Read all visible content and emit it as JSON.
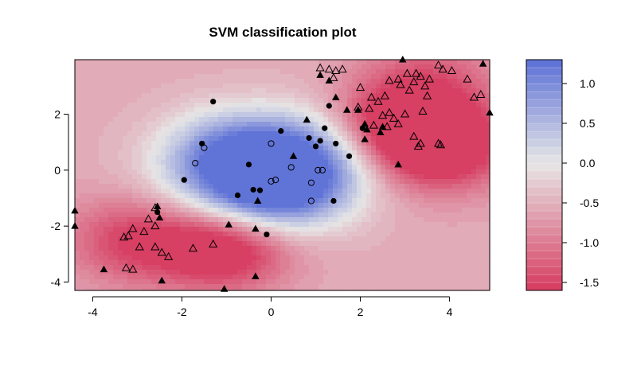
{
  "chart_data": {
    "type": "scatter",
    "title": "SVM classification plot",
    "xlabel": "",
    "ylabel": "",
    "xlim": [
      -4.4,
      4.9
    ],
    "ylim": [
      -4.3,
      3.95
    ],
    "x_ticks": [
      -4,
      -2,
      0,
      2,
      4
    ],
    "y_ticks": [
      -4,
      -2,
      0,
      2
    ],
    "x_tick_labels": [
      "-4",
      "-2",
      "0",
      "2",
      "4"
    ],
    "y_tick_labels": [
      "-4",
      "-2",
      "0",
      "2"
    ],
    "grid": false,
    "background": {
      "kind": "decision-value contour",
      "positive_color": "#5b6fd6",
      "neutral_color": "#e6e6e6",
      "negative_color": "#d63a5f",
      "blobs": [
        {
          "x": -0.6,
          "y": -0.2,
          "weight": 1.6,
          "spread": 1.3
        },
        {
          "x": 0.9,
          "y": 0.4,
          "weight": 1.3,
          "spread": 1.2
        },
        {
          "x": 0.2,
          "y": -0.9,
          "weight": 0.8,
          "spread": 1.0
        },
        {
          "x": -1.0,
          "y": 0.8,
          "weight": 0.6,
          "spread": 1.0
        },
        {
          "x": 3.7,
          "y": 0.9,
          "weight": -1.7,
          "spread": 1.1
        },
        {
          "x": 2.6,
          "y": 1.6,
          "weight": -0.9,
          "spread": 1.0
        },
        {
          "x": -1.0,
          "y": -2.8,
          "weight": -1.4,
          "spread": 1.0
        },
        {
          "x": -3.0,
          "y": -2.5,
          "weight": -1.0,
          "spread": 1.1
        },
        {
          "x": 3.5,
          "y": 3.2,
          "weight": -0.7,
          "spread": 1.1
        }
      ],
      "base": -0.55
    },
    "colorbar": {
      "range": [
        -1.6,
        1.3
      ],
      "ticks": [
        1.0,
        0.5,
        0.0,
        -0.5,
        -1.0,
        -1.5
      ],
      "tick_labels": [
        "1.0",
        "0.5",
        "0.0",
        "-0.5",
        "-1.0",
        "-1.5"
      ],
      "levels": 29
    },
    "series": [
      {
        "marker": "filled-circle",
        "points": [
          [
            -1.3,
            2.45
          ],
          [
            -1.55,
            0.95
          ],
          [
            -0.5,
            0.2
          ],
          [
            -1.95,
            -0.35
          ],
          [
            -0.75,
            -0.9
          ],
          [
            -0.4,
            -0.7
          ],
          [
            -0.25,
            -0.72
          ],
          [
            0.22,
            1.4
          ],
          [
            0.85,
            1.15
          ],
          [
            1.2,
            1.5
          ],
          [
            1.0,
            0.85
          ],
          [
            1.1,
            1.05
          ],
          [
            1.45,
            0.95
          ],
          [
            1.75,
            0.5
          ],
          [
            2.05,
            1.5
          ],
          [
            1.3,
            2.3
          ],
          [
            1.4,
            -1.1
          ],
          [
            -2.55,
            -1.5
          ],
          [
            -0.1,
            -2.3
          ]
        ]
      },
      {
        "marker": "open-circle",
        "points": [
          [
            -1.5,
            0.8
          ],
          [
            -1.7,
            0.25
          ],
          [
            0.0,
            0.95
          ],
          [
            0.0,
            -0.4
          ],
          [
            0.1,
            -0.35
          ],
          [
            0.45,
            0.1
          ],
          [
            1.05,
            0.0
          ],
          [
            1.15,
            0.0
          ],
          [
            0.9,
            -0.45
          ],
          [
            0.9,
            -1.1
          ]
        ]
      },
      {
        "marker": "filled-triangle",
        "points": [
          [
            -4.4,
            -1.45
          ],
          [
            -4.4,
            -2.0
          ],
          [
            -3.75,
            -3.55
          ],
          [
            -2.45,
            -3.95
          ],
          [
            -1.05,
            -4.25
          ],
          [
            -0.35,
            -3.8
          ],
          [
            -0.35,
            -2.1
          ],
          [
            -0.3,
            -1.1
          ],
          [
            -0.95,
            -1.95
          ],
          [
            -2.5,
            -1.7
          ],
          [
            -2.55,
            -1.3
          ],
          [
            0.5,
            0.5
          ],
          [
            0.8,
            1.8
          ],
          [
            1.45,
            2.6
          ],
          [
            1.7,
            2.15
          ],
          [
            1.95,
            2.15
          ],
          [
            2.1,
            1.1
          ],
          [
            2.15,
            1.45
          ],
          [
            2.1,
            1.65
          ],
          [
            2.45,
            1.35
          ],
          [
            2.5,
            1.55
          ],
          [
            2.85,
            0.2
          ],
          [
            1.1,
            3.4
          ],
          [
            1.3,
            3.2
          ],
          [
            2.95,
            3.95
          ],
          [
            4.75,
            3.8
          ],
          [
            4.9,
            2.05
          ]
        ]
      },
      {
        "marker": "open-triangle",
        "points": [
          [
            1.1,
            3.65
          ],
          [
            1.3,
            3.6
          ],
          [
            1.4,
            3.3
          ],
          [
            1.6,
            3.6
          ],
          [
            1.45,
            3.55
          ],
          [
            2.0,
            2.95
          ],
          [
            2.25,
            2.6
          ],
          [
            1.95,
            2.25
          ],
          [
            2.4,
            2.45
          ],
          [
            2.2,
            2.2
          ],
          [
            2.5,
            1.95
          ],
          [
            2.65,
            2.05
          ],
          [
            2.75,
            1.85
          ],
          [
            2.85,
            1.65
          ],
          [
            2.55,
            2.65
          ],
          [
            2.65,
            3.2
          ],
          [
            2.9,
            3.05
          ],
          [
            3.05,
            3.45
          ],
          [
            3.2,
            3.15
          ],
          [
            3.25,
            3.45
          ],
          [
            3.1,
            2.85
          ],
          [
            3.35,
            3.35
          ],
          [
            3.45,
            3.0
          ],
          [
            3.55,
            3.25
          ],
          [
            3.5,
            2.65
          ],
          [
            3.0,
            2.0
          ],
          [
            3.4,
            2.1
          ],
          [
            2.3,
            1.6
          ],
          [
            2.6,
            1.55
          ],
          [
            3.2,
            1.2
          ],
          [
            3.35,
            0.95
          ],
          [
            3.3,
            0.85
          ],
          [
            3.75,
            0.95
          ],
          [
            3.8,
            0.9
          ],
          [
            3.75,
            3.75
          ],
          [
            3.85,
            3.6
          ],
          [
            4.4,
            3.25
          ],
          [
            4.05,
            3.55
          ],
          [
            4.55,
            2.6
          ],
          [
            4.7,
            2.7
          ],
          [
            2.85,
            3.25
          ],
          [
            -3.1,
            -2.1
          ],
          [
            -3.2,
            -2.35
          ],
          [
            -3.3,
            -2.4
          ],
          [
            -2.85,
            -2.2
          ],
          [
            -2.6,
            -2.0
          ],
          [
            -2.75,
            -1.75
          ],
          [
            -2.95,
            -2.75
          ],
          [
            -2.6,
            -2.75
          ],
          [
            -2.45,
            -2.95
          ],
          [
            -2.3,
            -3.1
          ],
          [
            -1.75,
            -2.8
          ],
          [
            -1.3,
            -2.65
          ],
          [
            -3.25,
            -3.5
          ],
          [
            -3.1,
            -3.55
          ],
          [
            -2.6,
            -1.35
          ]
        ]
      }
    ]
  }
}
